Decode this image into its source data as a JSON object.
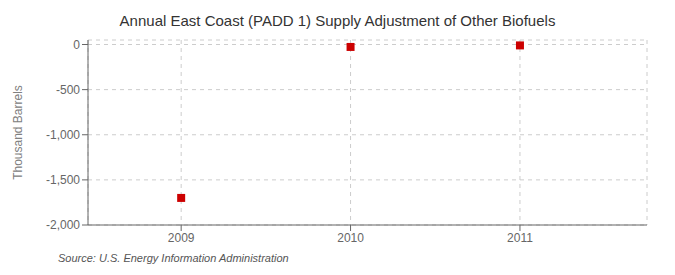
{
  "chart_data": {
    "type": "scatter",
    "title": "Annual East Coast (PADD 1) Supply Adjustment of Other Biofuels",
    "y_label": "Thousand Barrels",
    "annotations": [
      "Source: U.S. Energy Information Administration"
    ],
    "x": [
      2009,
      2010,
      2011
    ],
    "values": [
      -1700,
      -27,
      -10
    ],
    "color": "#cc0000",
    "marker": "square",
    "xlim": [
      2008.45,
      2011.75
    ],
    "xticks": [
      2009,
      2010,
      2011
    ],
    "ylim": [
      -2000,
      50
    ],
    "yticks": [
      0,
      -500,
      {
        "value": -1000,
        "label": "-1,000"
      },
      {
        "value": -1500,
        "label": "-1,500"
      },
      {
        "value": -2000,
        "label": "-2,000"
      }
    ],
    "grid": true
  }
}
